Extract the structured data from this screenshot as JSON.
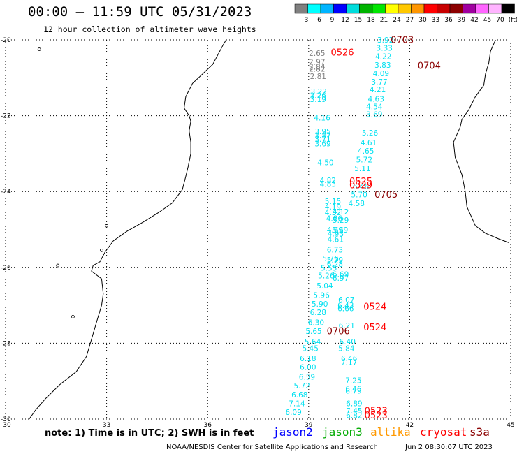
{
  "header": {
    "title": "00:00 — 11:59 UTC 05/31/2023",
    "subtitle": "12 hour collection of altimeter wave heights"
  },
  "colorbar": {
    "ticks": [
      "3",
      "6",
      "9",
      "12",
      "15",
      "18",
      "21",
      "24",
      "27",
      "30",
      "33",
      "36",
      "39",
      "42",
      "45",
      "70",
      "(ft)"
    ],
    "colors": [
      "#808080",
      "#00ffff",
      "#00b4ff",
      "#0000ff",
      "#00dcdc",
      "#00b400",
      "#00e600",
      "#ffff00",
      "#ffc800",
      "#ff9600",
      "#ff0000",
      "#c80000",
      "#8c0000",
      "#a000a0",
      "#ff64ff",
      "#ffb4ff",
      "#000000"
    ]
  },
  "map": {
    "lon_ticks": [
      "30",
      "33",
      "36",
      "39",
      "42",
      "45"
    ],
    "lat_ticks": [
      "-20",
      "-22",
      "-24",
      "-26",
      "-28",
      "-30"
    ],
    "lon_range": [
      30,
      45
    ],
    "lat_range": [
      -30,
      -20
    ]
  },
  "observations": [
    {
      "text": "3.92",
      "lon": 41.28,
      "lat": -20.02,
      "color": "#00e0f0"
    },
    {
      "text": "3.33",
      "lon": 41.25,
      "lat": -20.23,
      "color": "#00e0f0"
    },
    {
      "text": "4.22",
      "lon": 41.22,
      "lat": -20.45,
      "color": "#00e0f0"
    },
    {
      "text": "3.83",
      "lon": 41.2,
      "lat": -20.68,
      "color": "#00e0f0"
    },
    {
      "text": "4.09",
      "lon": 41.15,
      "lat": -20.9,
      "color": "#00e0f0"
    },
    {
      "text": "3.77",
      "lon": 41.1,
      "lat": -21.12,
      "color": "#00e0f0"
    },
    {
      "text": "4.21",
      "lon": 41.05,
      "lat": -21.33,
      "color": "#00e0f0"
    },
    {
      "text": "4.63",
      "lon": 41.0,
      "lat": -21.57,
      "color": "#00e0f0"
    },
    {
      "text": "4.54",
      "lon": 40.95,
      "lat": -21.78,
      "color": "#00e0f0"
    },
    {
      "text": "3.69",
      "lon": 40.95,
      "lat": -21.98,
      "color": "#00e0f0"
    },
    {
      "text": "5.26",
      "lon": 40.82,
      "lat": -22.47,
      "color": "#00e0f0"
    },
    {
      "text": "4.61",
      "lon": 40.78,
      "lat": -22.73,
      "color": "#00e0f0"
    },
    {
      "text": "4.65",
      "lon": 40.7,
      "lat": -22.95,
      "color": "#00e0f0"
    },
    {
      "text": "5.72",
      "lon": 40.65,
      "lat": -23.18,
      "color": "#00e0f0"
    },
    {
      "text": "5.11",
      "lon": 40.6,
      "lat": -23.41,
      "color": "#00e0f0"
    },
    {
      "text": "6.46",
      "lon": 40.55,
      "lat": -23.89,
      "color": "#00e0f0"
    },
    {
      "text": "5.70",
      "lon": 40.5,
      "lat": -24.1,
      "color": "#00e0f0"
    },
    {
      "text": "4.58",
      "lon": 40.42,
      "lat": -24.33,
      "color": "#00e0f0"
    },
    {
      "text": "2.65",
      "lon": 39.25,
      "lat": -20.37,
      "color": "#808080"
    },
    {
      "text": "2.97",
      "lon": 39.25,
      "lat": -20.6,
      "color": "#808080"
    },
    {
      "text": "2.84",
      "lon": 39.25,
      "lat": -20.73,
      "color": "#808080"
    },
    {
      "text": "2.82",
      "lon": 39.25,
      "lat": -20.78,
      "color": "#808080"
    },
    {
      "text": "2.81",
      "lon": 39.28,
      "lat": -20.98,
      "color": "#808080"
    },
    {
      "text": "3.22",
      "lon": 39.3,
      "lat": -21.38,
      "color": "#00e0f0"
    },
    {
      "text": "3.26",
      "lon": 39.28,
      "lat": -21.48,
      "color": "#00e0f0"
    },
    {
      "text": "3.19",
      "lon": 39.28,
      "lat": -21.58,
      "color": "#00e0f0"
    },
    {
      "text": "4.16",
      "lon": 39.4,
      "lat": -22.07,
      "color": "#00e0f0"
    },
    {
      "text": "3.95",
      "lon": 39.42,
      "lat": -22.43,
      "color": "#00e0f0"
    },
    {
      "text": "3.87",
      "lon": 39.42,
      "lat": -22.53,
      "color": "#00e0f0"
    },
    {
      "text": "3.71",
      "lon": 39.42,
      "lat": -22.63,
      "color": "#00e0f0"
    },
    {
      "text": "3.69",
      "lon": 39.42,
      "lat": -22.75,
      "color": "#00e0f0"
    },
    {
      "text": "4.50",
      "lon": 39.5,
      "lat": -23.25,
      "color": "#00e0f0"
    },
    {
      "text": "4.82",
      "lon": 39.57,
      "lat": -23.72,
      "color": "#00e0f0"
    },
    {
      "text": "4.83",
      "lon": 39.57,
      "lat": -23.82,
      "color": "#00e0f0"
    },
    {
      "text": "5.15",
      "lon": 39.72,
      "lat": -24.27,
      "color": "#00e0f0"
    },
    {
      "text": "4.19",
      "lon": 39.72,
      "lat": -24.42,
      "color": "#00e0f0"
    },
    {
      "text": "4.32",
      "lon": 39.72,
      "lat": -24.57,
      "color": "#00e0f0"
    },
    {
      "text": "4.12",
      "lon": 39.95,
      "lat": -24.55,
      "color": "#00e0f0"
    },
    {
      "text": "4.86",
      "lon": 39.76,
      "lat": -24.72,
      "color": "#00e0f0"
    },
    {
      "text": "5.29",
      "lon": 39.95,
      "lat": -24.77,
      "color": "#00e0f0"
    },
    {
      "text": "4.69",
      "lon": 39.78,
      "lat": -25.03,
      "color": "#00e0f0"
    },
    {
      "text": "5.69",
      "lon": 39.93,
      "lat": -25.03,
      "color": "#00e0f0"
    },
    {
      "text": "4.93",
      "lon": 39.8,
      "lat": -25.13,
      "color": "#00e0f0"
    },
    {
      "text": "4.61",
      "lon": 39.8,
      "lat": -25.28,
      "color": "#00e0f0"
    },
    {
      "text": "6.73",
      "lon": 39.78,
      "lat": -25.55,
      "color": "#00e0f0"
    },
    {
      "text": "5.76",
      "lon": 39.65,
      "lat": -25.78,
      "color": "#00e0f0"
    },
    {
      "text": "5.79",
      "lon": 39.78,
      "lat": -25.82,
      "color": "#00e0f0"
    },
    {
      "text": "6.28",
      "lon": 39.78,
      "lat": -25.93,
      "color": "#00e0f0"
    },
    {
      "text": "5.55",
      "lon": 39.6,
      "lat": -26.03,
      "color": "#00e0f0"
    },
    {
      "text": "5.26",
      "lon": 39.52,
      "lat": -26.23,
      "color": "#00e0f0"
    },
    {
      "text": "6.69",
      "lon": 39.95,
      "lat": -26.2,
      "color": "#00e0f0"
    },
    {
      "text": "6.97",
      "lon": 39.95,
      "lat": -26.3,
      "color": "#00e0f0"
    },
    {
      "text": "5.04",
      "lon": 39.48,
      "lat": -26.5,
      "color": "#00e0f0"
    },
    {
      "text": "5.96",
      "lon": 39.38,
      "lat": -26.75,
      "color": "#00e0f0"
    },
    {
      "text": "6.07",
      "lon": 40.12,
      "lat": -26.87,
      "color": "#00e0f0"
    },
    {
      "text": "5.90",
      "lon": 39.33,
      "lat": -26.98,
      "color": "#00e0f0"
    },
    {
      "text": "6.43",
      "lon": 40.1,
      "lat": -27.02,
      "color": "#00e0f0"
    },
    {
      "text": "6.66",
      "lon": 40.1,
      "lat": -27.1,
      "color": "#00e0f0"
    },
    {
      "text": "6.28",
      "lon": 39.28,
      "lat": -27.2,
      "color": "#00e0f0"
    },
    {
      "text": "6.30",
      "lon": 39.22,
      "lat": -27.47,
      "color": "#00e0f0"
    },
    {
      "text": "6.21",
      "lon": 40.13,
      "lat": -27.55,
      "color": "#00e0f0"
    },
    {
      "text": "5.65",
      "lon": 39.15,
      "lat": -27.7,
      "color": "#00e0f0"
    },
    {
      "text": "5.64",
      "lon": 39.12,
      "lat": -27.97,
      "color": "#00e0f0"
    },
    {
      "text": "6.40",
      "lon": 40.15,
      "lat": -27.97,
      "color": "#00e0f0"
    },
    {
      "text": "5.45",
      "lon": 39.05,
      "lat": -28.15,
      "color": "#00e0f0"
    },
    {
      "text": "5.84",
      "lon": 40.12,
      "lat": -28.15,
      "color": "#00e0f0"
    },
    {
      "text": "6.18",
      "lon": 38.98,
      "lat": -28.42,
      "color": "#00e0f0"
    },
    {
      "text": "6.46",
      "lon": 40.2,
      "lat": -28.42,
      "color": "#00e0f0"
    },
    {
      "text": "7.17",
      "lon": 40.2,
      "lat": -28.52,
      "color": "#00e0f0"
    },
    {
      "text": "6.00",
      "lon": 38.98,
      "lat": -28.65,
      "color": "#00e0f0"
    },
    {
      "text": "6.59",
      "lon": 38.95,
      "lat": -28.9,
      "color": "#00e0f0"
    },
    {
      "text": "7.25",
      "lon": 40.33,
      "lat": -29.0,
      "color": "#00e0f0"
    },
    {
      "text": "5.72",
      "lon": 38.8,
      "lat": -29.13,
      "color": "#00e0f0"
    },
    {
      "text": "6.46",
      "lon": 40.33,
      "lat": -29.22,
      "color": "#00e0f0"
    },
    {
      "text": "6.79",
      "lon": 40.33,
      "lat": -29.27,
      "color": "#00e0f0"
    },
    {
      "text": "6.68",
      "lon": 38.73,
      "lat": -29.37,
      "color": "#00e0f0"
    },
    {
      "text": "6.89",
      "lon": 40.35,
      "lat": -29.6,
      "color": "#00e0f0"
    },
    {
      "text": "7.14",
      "lon": 38.65,
      "lat": -29.6,
      "color": "#00e0f0"
    },
    {
      "text": "7.45",
      "lon": 40.35,
      "lat": -29.8,
      "color": "#00e0f0"
    },
    {
      "text": "6.09",
      "lon": 38.55,
      "lat": -29.83,
      "color": "#00e0f0"
    },
    {
      "text": "6.82",
      "lon": 40.35,
      "lat": -29.92,
      "color": "#00e0f0"
    }
  ],
  "pass_labels": [
    {
      "text": "0703",
      "lon": 41.78,
      "lat": -20.02,
      "color": "#8b0000"
    },
    {
      "text": "0526",
      "lon": 40.0,
      "lat": -20.35,
      "color": "#ff0000"
    },
    {
      "text": "0704",
      "lon": 42.58,
      "lat": -20.7,
      "color": "#8b0000"
    },
    {
      "text": "0525",
      "lon": 40.55,
      "lat": -23.75,
      "color": "#ff0000"
    },
    {
      "text": "0529",
      "lon": 40.55,
      "lat": -23.85,
      "color": "#ff0000"
    },
    {
      "text": "0705",
      "lon": 41.3,
      "lat": -24.1,
      "color": "#8b0000"
    },
    {
      "text": "0524",
      "lon": 40.97,
      "lat": -27.05,
      "color": "#ff0000"
    },
    {
      "text": "0524",
      "lon": 40.97,
      "lat": -27.6,
      "color": "#ff0000"
    },
    {
      "text": "0706",
      "lon": 39.88,
      "lat": -27.7,
      "color": "#8b0000"
    },
    {
      "text": "0523",
      "lon": 41.0,
      "lat": -29.8,
      "color": "#ff0000"
    },
    {
      "text": "0523",
      "lon": 41.0,
      "lat": -29.92,
      "color": "#ff0000"
    }
  ],
  "legend": {
    "note": "note: 1) Time is in UTC; 2) SWH is in feet",
    "satellites": [
      {
        "name": "jason2",
        "color": "#0000ff"
      },
      {
        "name": "jason3",
        "color": "#00aa00"
      },
      {
        "name": "altika",
        "color": "#ff9900"
      },
      {
        "name": "cryosat",
        "color": "#ff0000"
      },
      {
        "name": "s3a",
        "color": "#8b0000"
      }
    ]
  },
  "footer": {
    "credit": "NOAA/NESDIS Center for Satellite Applications and Research",
    "date": "Jun  2 08:30:07 UTC 2023"
  }
}
